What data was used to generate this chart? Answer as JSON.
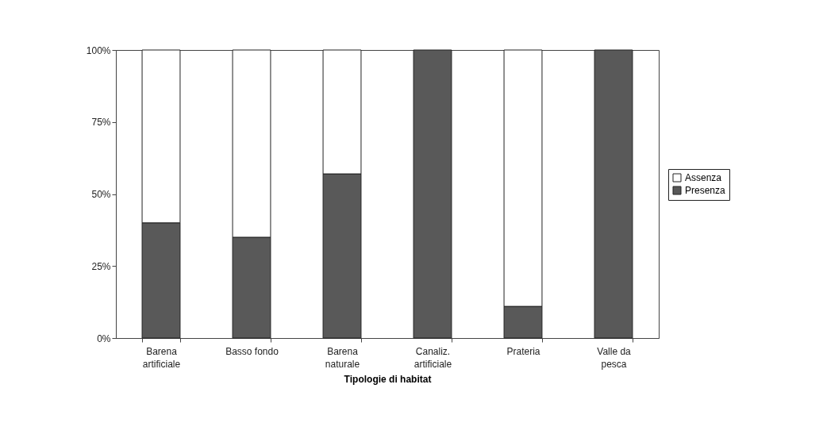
{
  "chart_data": {
    "type": "bar",
    "stacked": true,
    "xlabel": "Tipologie di habitat",
    "categories": [
      "Barena artificiale",
      "Basso fondo",
      "Barena naturale",
      "Canaliz. artificiale",
      "Prateria",
      "Valle da pesca"
    ],
    "series": [
      {
        "name": "Presenza",
        "color": "#595959",
        "values": [
          40,
          35,
          57,
          100,
          11,
          100
        ]
      },
      {
        "name": "Assenza",
        "color": "#ffffff",
        "values": [
          60,
          65,
          43,
          null,
          89,
          null
        ]
      }
    ],
    "ylim": [
      0,
      100
    ],
    "yticks": [
      {
        "value": 0,
        "label": "0%"
      },
      {
        "value": 25,
        "label": "25%"
      },
      {
        "value": 50,
        "label": "50%"
      },
      {
        "value": 75,
        "label": "75%"
      },
      {
        "value": 100,
        "label": "100%"
      }
    ],
    "grid": false,
    "legend": "right"
  }
}
